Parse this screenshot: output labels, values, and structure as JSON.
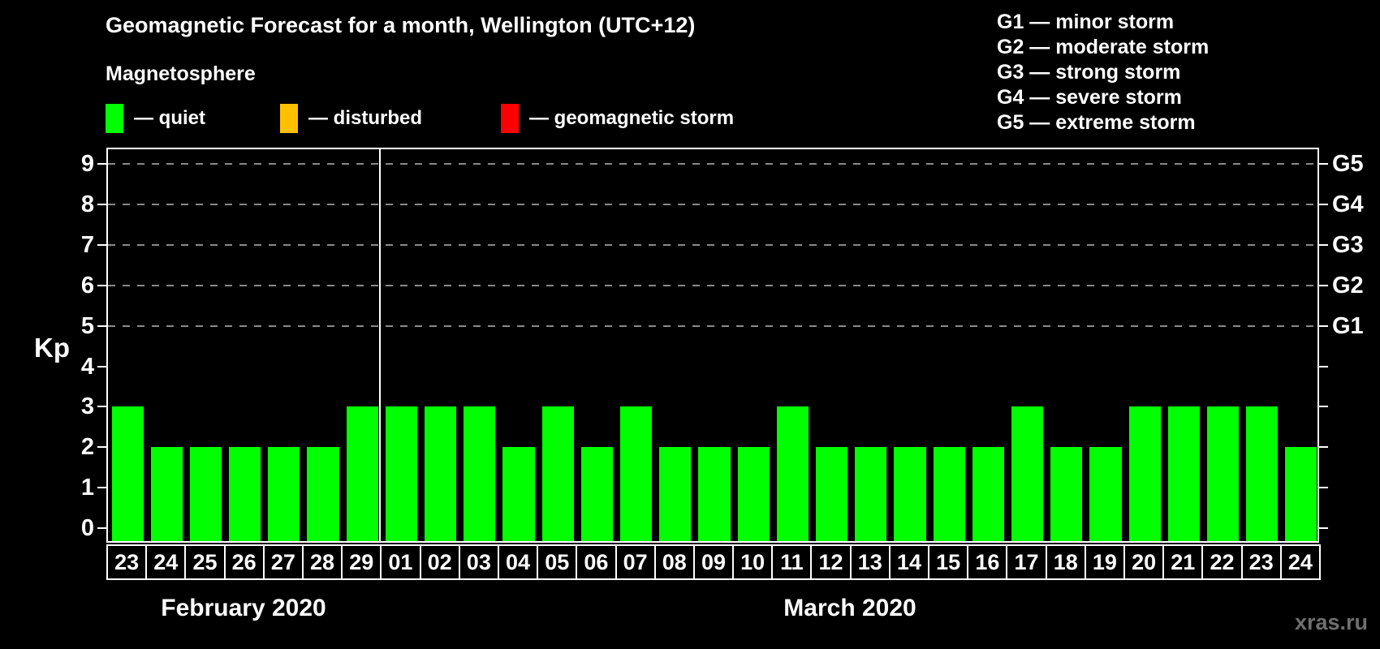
{
  "chart_data": {
    "type": "bar",
    "title": "Geomagnetic Forecast for a month, Wellington (UTC+12)",
    "ylabel": "Kp",
    "ylim": [
      0,
      9
    ],
    "y_ticks": [
      0,
      1,
      2,
      3,
      4,
      5,
      6,
      7,
      8,
      9
    ],
    "grid_levels": [
      5,
      6,
      7,
      8,
      9
    ],
    "grid_style": "dashed",
    "legend_position": "top-left",
    "right_axis": [
      {
        "kp": 5,
        "label": "G1"
      },
      {
        "kp": 6,
        "label": "G2"
      },
      {
        "kp": 7,
        "label": "G3"
      },
      {
        "kp": 8,
        "label": "G4"
      },
      {
        "kp": 9,
        "label": "G5"
      }
    ],
    "months": [
      {
        "label": "February 2020",
        "days": [
          "23",
          "24",
          "25",
          "26",
          "27",
          "28",
          "29"
        ],
        "values": [
          3,
          2,
          2,
          2,
          2,
          2,
          3
        ]
      },
      {
        "label": "March 2020",
        "days": [
          "01",
          "02",
          "03",
          "04",
          "05",
          "06",
          "07",
          "08",
          "09",
          "10",
          "11",
          "12",
          "13",
          "14",
          "15",
          "16",
          "17",
          "18",
          "19",
          "20",
          "21",
          "22",
          "23",
          "24"
        ],
        "values": [
          3,
          3,
          3,
          2,
          3,
          2,
          3,
          2,
          2,
          2,
          3,
          2,
          2,
          2,
          2,
          2,
          3,
          2,
          2,
          3,
          3,
          3,
          3,
          2
        ]
      }
    ],
    "colors": {
      "quiet": "#00ff00",
      "disturbed": "#ffc000",
      "storm": "#ff0000"
    },
    "thresholds": {
      "disturbed_min_kp": 4,
      "storm_min_kp": 5
    }
  },
  "legend": {
    "heading": "Magnetosphere",
    "items": [
      {
        "label": "— quiet",
        "color": "#00ff00"
      },
      {
        "label": "— disturbed",
        "color": "#ffc000"
      },
      {
        "label": "— geomagnetic storm",
        "color": "#ff0000"
      }
    ]
  },
  "g_scale_legend": [
    {
      "text": "G1 — minor storm"
    },
    {
      "text": "G2 — moderate storm"
    },
    {
      "text": "G3 — strong storm"
    },
    {
      "text": "G4 — severe storm"
    },
    {
      "text": "G5 — extreme storm"
    }
  ],
  "watermark": "xras.ru"
}
